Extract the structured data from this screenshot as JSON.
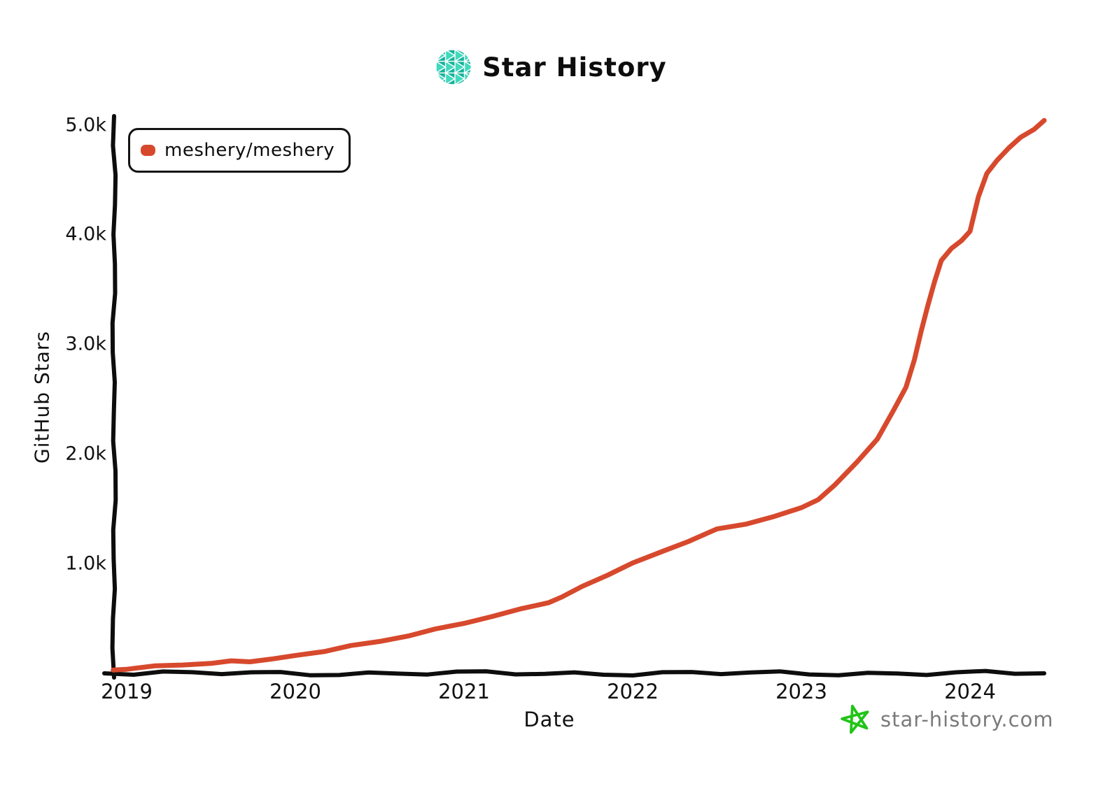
{
  "header": {
    "title": "Star History",
    "logo_icon": "star-history-sphere-logo"
  },
  "legend": {
    "label": "meshery/meshery",
    "marker_color": "#d7492d"
  },
  "footer": {
    "site": "star-history.com",
    "star_icon_color": "#21c417",
    "text_color": "#7b7b7b"
  },
  "colors": {
    "axis": "#0d0d0d",
    "accent_red": "#d7492d",
    "logo_teal_dark": "#12b199",
    "logo_teal_light": "#3fd9bd"
  },
  "chart_data": {
    "type": "line",
    "title": "Star History",
    "xlabel": "Date",
    "ylabel": "GitHub Stars",
    "legend_position": "top-left",
    "grid": false,
    "xlim": [
      2018.9,
      2024.5
    ],
    "ylim": [
      0,
      5100
    ],
    "x_ticks": [
      {
        "label": "2019",
        "value": 2019
      },
      {
        "label": "2020",
        "value": 2020
      },
      {
        "label": "2021",
        "value": 2021
      },
      {
        "label": "2022",
        "value": 2022
      },
      {
        "label": "2023",
        "value": 2023
      },
      {
        "label": "2024",
        "value": 2024
      }
    ],
    "y_ticks": [
      {
        "label": "1.0k",
        "value": 1000
      },
      {
        "label": "2.0k",
        "value": 2000
      },
      {
        "label": "3.0k",
        "value": 3000
      },
      {
        "label": "4.0k",
        "value": 4000
      },
      {
        "label": "5.0k",
        "value": 5000
      }
    ],
    "series": [
      {
        "name": "meshery/meshery",
        "color": "#d7492d",
        "points": [
          [
            2018.92,
            30
          ],
          [
            2019.0,
            42
          ],
          [
            2019.17,
            62
          ],
          [
            2019.33,
            80
          ],
          [
            2019.5,
            92
          ],
          [
            2019.62,
            108
          ],
          [
            2019.73,
            112
          ],
          [
            2019.87,
            130
          ],
          [
            2020.0,
            160
          ],
          [
            2020.17,
            205
          ],
          [
            2020.33,
            248
          ],
          [
            2020.5,
            292
          ],
          [
            2020.67,
            345
          ],
          [
            2020.83,
            398
          ],
          [
            2021.0,
            460
          ],
          [
            2021.17,
            520
          ],
          [
            2021.33,
            580
          ],
          [
            2021.5,
            650
          ],
          [
            2021.58,
            692
          ],
          [
            2021.7,
            790
          ],
          [
            2021.85,
            900
          ],
          [
            2022.0,
            1000
          ],
          [
            2022.17,
            1110
          ],
          [
            2022.33,
            1205
          ],
          [
            2022.5,
            1310
          ],
          [
            2022.67,
            1365
          ],
          [
            2022.83,
            1425
          ],
          [
            2023.0,
            1505
          ],
          [
            2023.1,
            1590
          ],
          [
            2023.2,
            1715
          ],
          [
            2023.33,
            1925
          ],
          [
            2023.45,
            2140
          ],
          [
            2023.55,
            2400
          ],
          [
            2023.62,
            2610
          ],
          [
            2023.67,
            2860
          ],
          [
            2023.71,
            3110
          ],
          [
            2023.75,
            3360
          ],
          [
            2023.79,
            3570
          ],
          [
            2023.83,
            3760
          ],
          [
            2023.89,
            3880
          ],
          [
            2023.95,
            3940
          ],
          [
            2024.0,
            4030
          ],
          [
            2024.05,
            4350
          ],
          [
            2024.1,
            4550
          ],
          [
            2024.16,
            4680
          ],
          [
            2024.23,
            4790
          ],
          [
            2024.3,
            4880
          ],
          [
            2024.38,
            4965
          ],
          [
            2024.44,
            5040
          ]
        ]
      }
    ]
  }
}
